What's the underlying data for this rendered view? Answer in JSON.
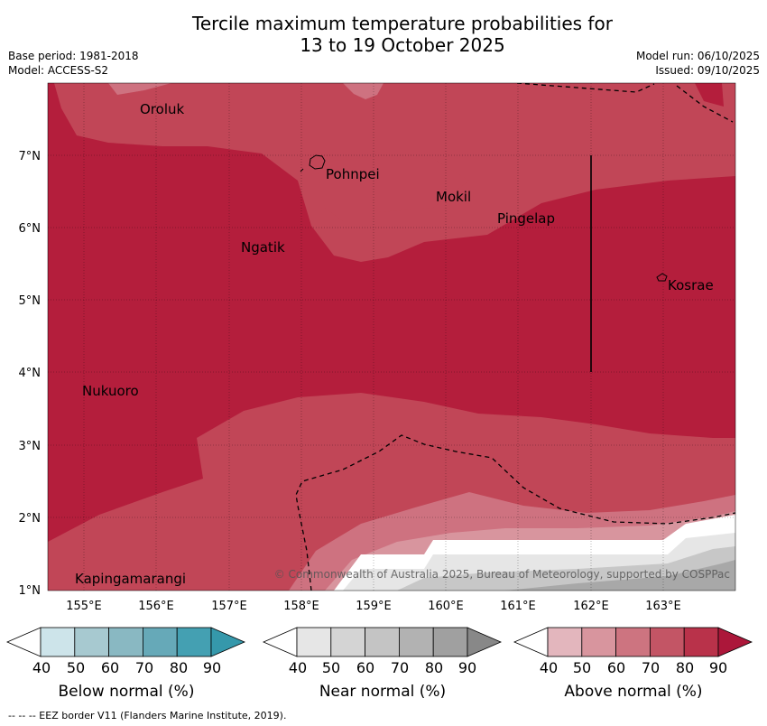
{
  "title": {
    "line1": "Tercile maximum temperature probabilities for",
    "line2": "13 to 19 October 2025"
  },
  "meta": {
    "base_period": "Base period: 1981-2018",
    "model": "Model: ACCESS-S2",
    "model_run": "Model run: 06/10/2025",
    "issued": "Issued: 09/10/2025"
  },
  "map": {
    "lat_labels": [
      "7°N",
      "6°N",
      "5°N",
      "4°N",
      "3°N",
      "2°N",
      "1°N"
    ],
    "lon_labels": [
      "155°E",
      "156°E",
      "157°E",
      "158°E",
      "159°E",
      "160°E",
      "161°E",
      "162°E",
      "163°E"
    ],
    "places": [
      "Oroluk",
      "Pohnpei",
      "Mokil",
      "Pingelap",
      "Ngatik",
      "Kosrae",
      "Nukuoro",
      "Kapingamarangi"
    ],
    "copyright": "© Commonwealth of Australia 2025, Bureau of Meteorology, supported by COSPPac"
  },
  "colorbars": [
    {
      "title": "Below normal (%)",
      "ticks": [
        "40",
        "50",
        "60",
        "70",
        "80",
        "90"
      ],
      "colors": [
        "#cde4ea",
        "#a7c9d0",
        "#89b8c2",
        "#66a9b8",
        "#44a0b2",
        "#3598ab"
      ]
    },
    {
      "title": "Near normal (%)",
      "ticks": [
        "40",
        "50",
        "60",
        "70",
        "80",
        "90"
      ],
      "colors": [
        "#e6e6e6",
        "#d4d4d4",
        "#c4c4c4",
        "#b2b2b2",
        "#a0a0a0",
        "#888888"
      ]
    },
    {
      "title": "Above normal (%)",
      "ticks": [
        "40",
        "50",
        "60",
        "70",
        "80",
        "90"
      ],
      "colors": [
        "#e3b6bd",
        "#d8959e",
        "#cd7480",
        "#c35565",
        "#b9324a",
        "#ac173a"
      ]
    }
  ],
  "footer": "--  --  -- EEZ border V11 (Flanders Marine Institute, 2019).",
  "colors": {
    "above_80": "#b41e3c",
    "above_70": "#c14657",
    "above_60": "#ce7280",
    "near_60": "#c7c7c7"
  }
}
